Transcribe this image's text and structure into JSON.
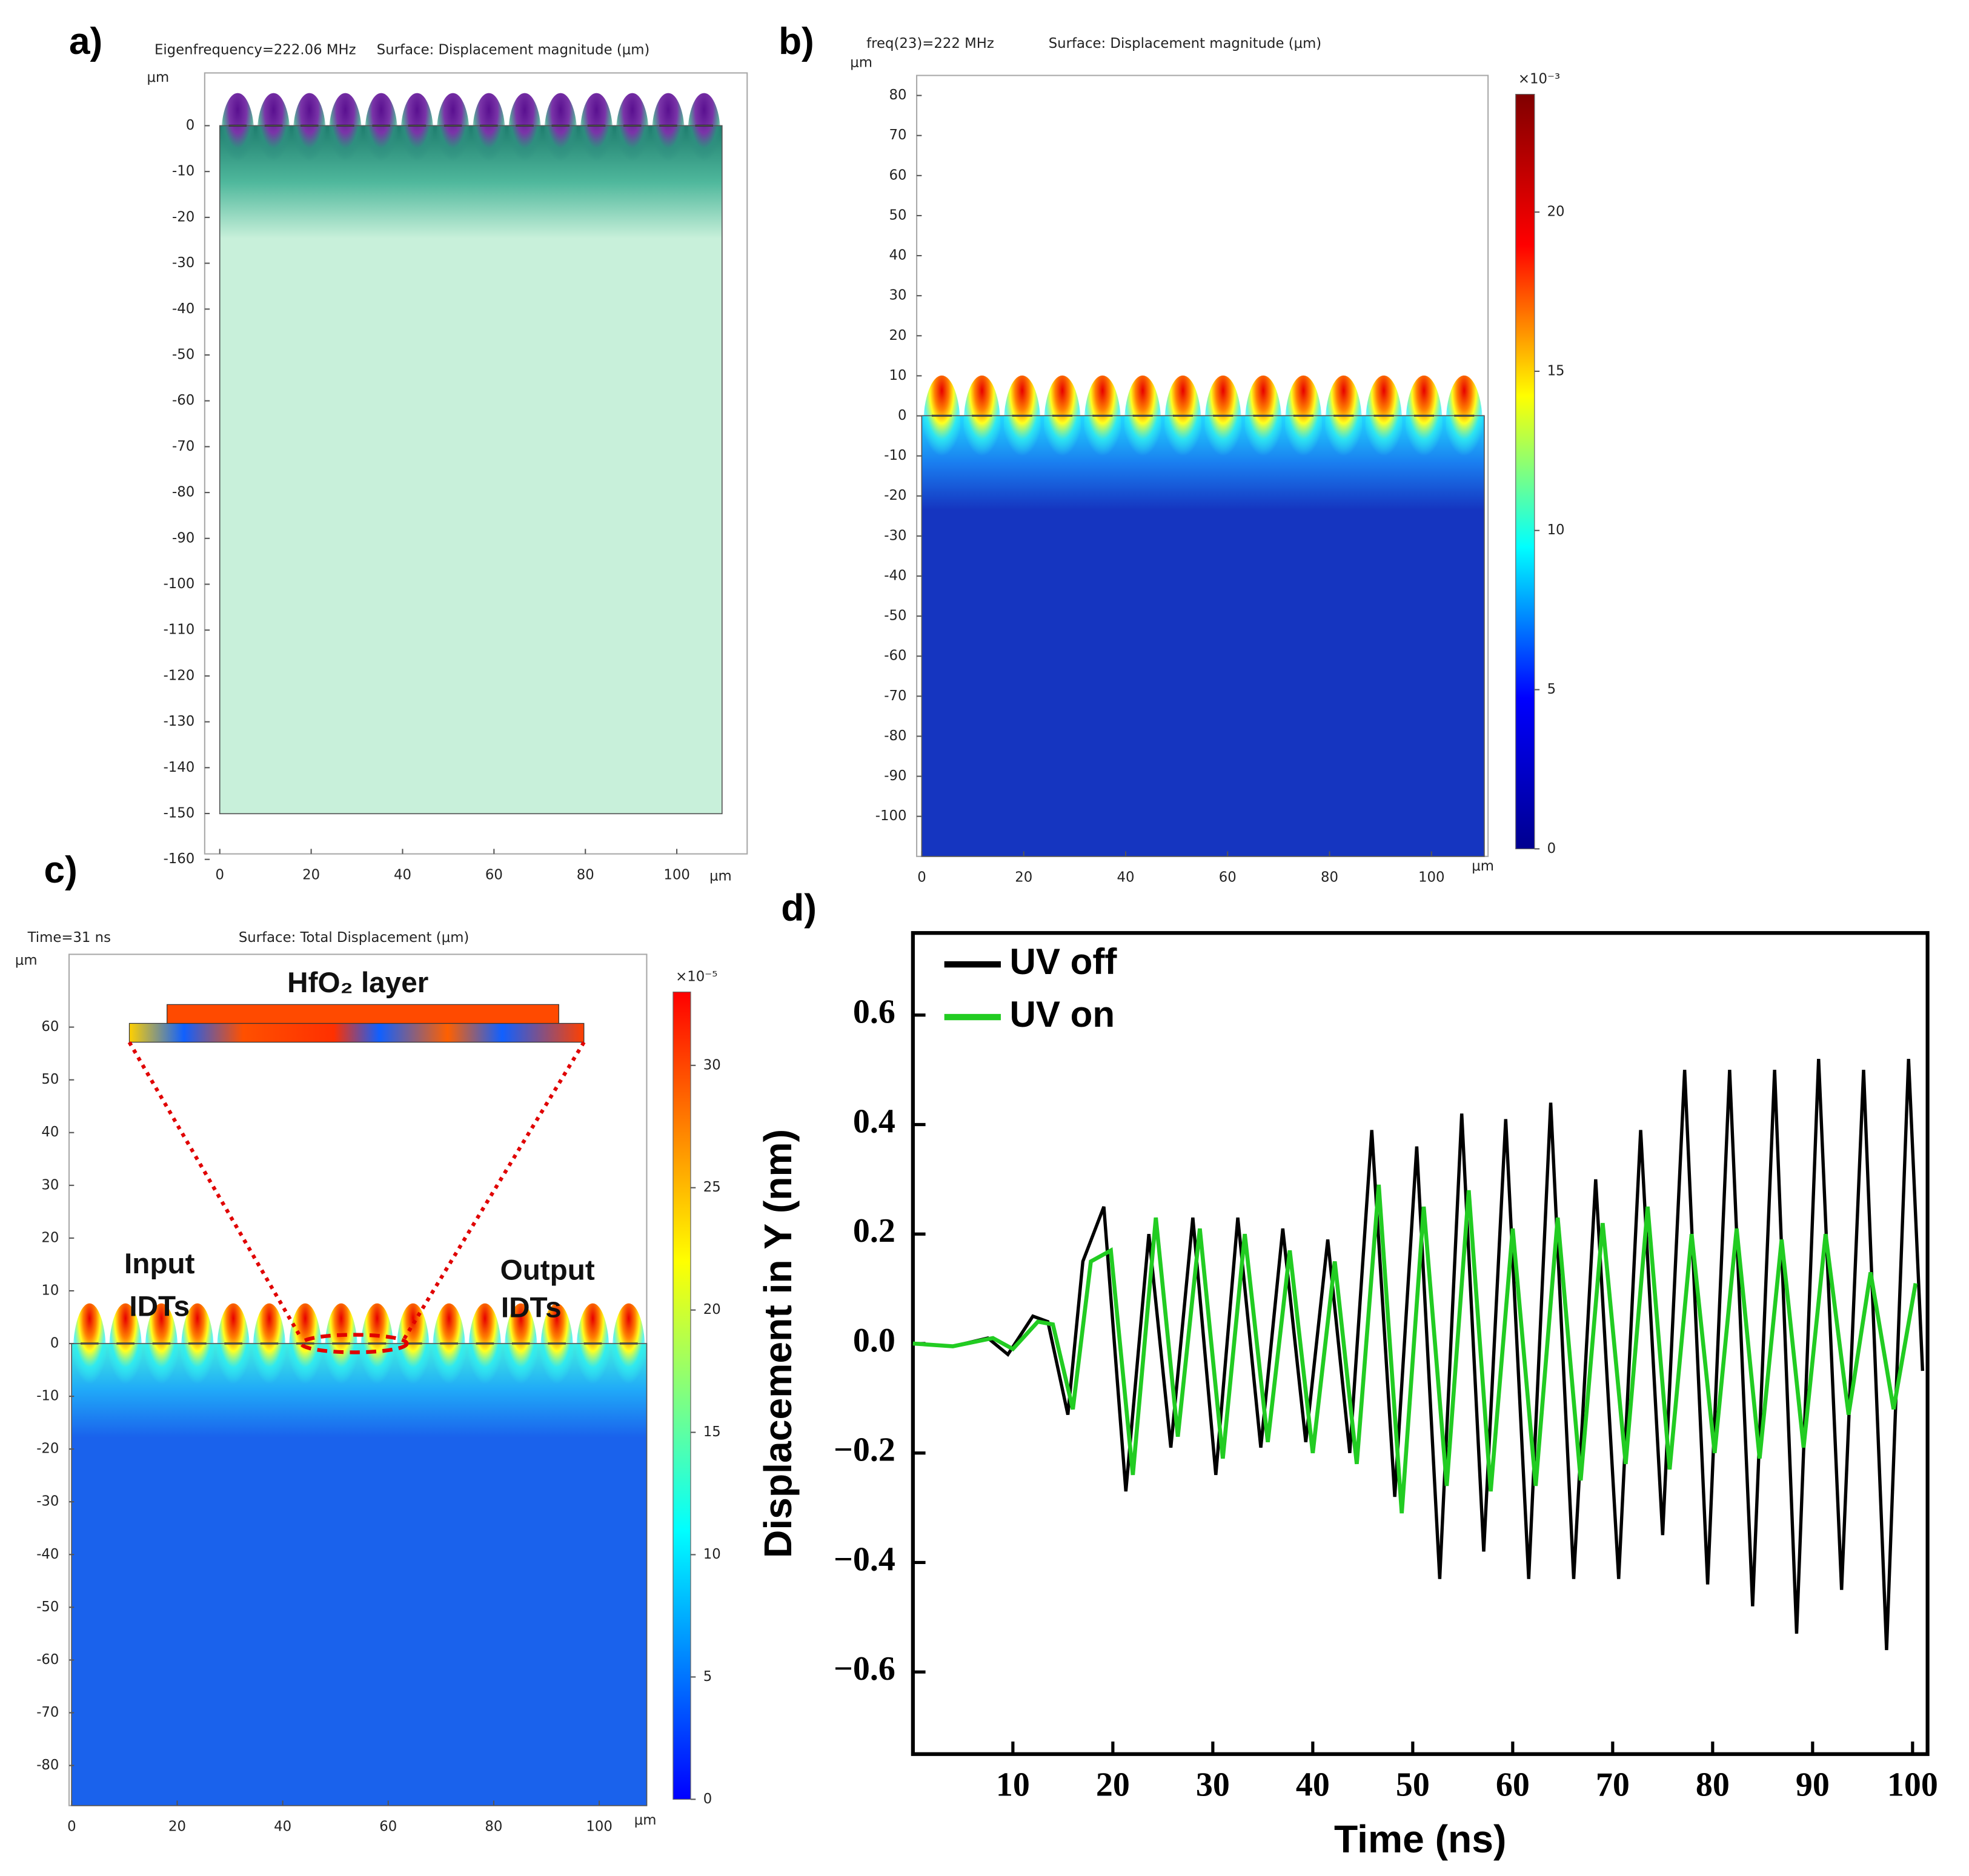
{
  "chart_data": [
    {
      "type": "field",
      "panel_label": "a)",
      "info": "Eigenfrequency=222.06 MHz",
      "title": "Surface: Displacement magnitude (μm)",
      "x_unit": "μm",
      "y_unit": "μm",
      "xlim": [
        -3.3,
        115.4
      ],
      "ylim": [
        -158.8,
        11.5
      ],
      "xticks": [
        0,
        20,
        40,
        60,
        80,
        100
      ],
      "yticks": [
        0,
        -10,
        -20,
        -30,
        -40,
        -50,
        -60,
        -70,
        -80,
        -90,
        -100,
        -110,
        -120,
        -130,
        -140,
        -150,
        -160
      ]
    },
    {
      "type": "field",
      "panel_label": "b)",
      "info": "freq(23)=222 MHz",
      "title": "Surface: Displacement magnitude (μm)",
      "x_unit": "μm",
      "y_unit": "μm",
      "xlim": [
        -1,
        111.1
      ],
      "ylim": [
        -110,
        85
      ],
      "xticks": [
        0,
        20,
        40,
        60,
        80,
        100
      ],
      "yticks": [
        80,
        70,
        60,
        50,
        40,
        30,
        20,
        10,
        0,
        -10,
        -20,
        -30,
        -40,
        -50,
        -60,
        -70,
        -80,
        -90,
        -100
      ],
      "colorbar": {
        "label": "×10⁻³",
        "lim": [
          0,
          23.7
        ],
        "ticks": [
          0,
          5,
          10,
          15,
          20
        ],
        "colormap": [
          "#00008f",
          "#0000ff",
          "#00ffff",
          "#ffff00",
          "#ff0000",
          "#800000"
        ]
      }
    },
    {
      "type": "field",
      "panel_label": "c)",
      "info": "Time=31 ns",
      "title": "Surface: Total Displacement (μm)",
      "x_unit": "μm",
      "y_unit": "μm",
      "xlim": [
        -0.5,
        109
      ],
      "ylim": [
        -87.6,
        73.8
      ],
      "xticks": [
        0,
        20,
        40,
        60,
        80,
        100
      ],
      "yticks": [
        60,
        50,
        40,
        30,
        20,
        10,
        0,
        -10,
        -20,
        -30,
        -40,
        -50,
        -60,
        -70,
        -80
      ],
      "colorbar": {
        "label": "×10⁻⁵",
        "lim": [
          0,
          33
        ],
        "ticks": [
          0,
          5,
          10,
          15,
          20,
          25,
          30
        ],
        "colormap": [
          "#0000ff",
          "#0080ff",
          "#00ffff",
          "#80ff80",
          "#ffff00",
          "#ff8000",
          "#ff0000"
        ]
      },
      "annotations": [
        "HfO₂ layer",
        "Input",
        "IDTs",
        "Output",
        "IDTs"
      ]
    },
    {
      "type": "line",
      "panel_label": "d)",
      "xlabel": "Time (ns)",
      "ylabel": "Displacement in Y (nm)",
      "xlim": [
        0,
        101.5
      ],
      "ylim": [
        -0.75,
        0.75
      ],
      "xticks": [
        10,
        20,
        30,
        40,
        50,
        60,
        70,
        80,
        90,
        100
      ],
      "yticks": [
        {
          "value": -0.6,
          "label": "−0.6"
        },
        {
          "value": -0.4,
          "label": "−0.4"
        },
        {
          "value": -0.2,
          "label": "−0.2"
        },
        {
          "value": 0,
          "label": "0.0"
        },
        0.2,
        0.4,
        0.6
      ],
      "legend": "upper left",
      "series": [
        {
          "name": "UV off",
          "color": "#000000",
          "x": [
            0,
            4,
            7.5,
            9.5,
            12,
            13.5,
            15.5,
            17,
            19.1,
            21.3,
            23.6,
            25.8,
            28.0,
            30.3,
            32.5,
            34.8,
            37.0,
            39.3,
            41.5,
            43.7,
            45.9,
            48.2,
            50.4,
            52.7,
            54.9,
            57.1,
            59.3,
            61.6,
            63.8,
            66.1,
            68.3,
            70.6,
            72.8,
            75.0,
            77.2,
            79.5,
            81.7,
            84.0,
            86.2,
            88.4,
            90.6,
            92.9,
            95.1,
            97.4,
            99.6,
            101
          ],
          "values": [
            0,
            -0.005,
            0.01,
            -0.02,
            0.05,
            0.04,
            -0.13,
            0.15,
            0.25,
            -0.27,
            0.2,
            -0.19,
            0.23,
            -0.24,
            0.23,
            -0.19,
            0.21,
            -0.18,
            0.19,
            -0.2,
            0.39,
            -0.28,
            0.36,
            -0.43,
            0.42,
            -0.38,
            0.41,
            -0.43,
            0.44,
            -0.43,
            0.3,
            -0.43,
            0.39,
            -0.35,
            0.5,
            -0.44,
            0.5,
            -0.48,
            0.5,
            -0.53,
            0.52,
            -0.45,
            0.5,
            -0.56,
            0.52,
            -0.05
          ]
        },
        {
          "name": "UV on",
          "color": "#22cc22",
          "x": [
            0,
            4,
            8,
            10,
            12.5,
            14,
            16,
            17.8,
            19.8,
            22.0,
            24.3,
            26.5,
            28.7,
            31.0,
            33.2,
            35.5,
            37.7,
            40.0,
            42.2,
            44.4,
            46.6,
            48.9,
            51.1,
            53.4,
            55.6,
            57.8,
            60.0,
            62.3,
            64.5,
            66.8,
            69.0,
            71.3,
            73.5,
            75.7,
            77.9,
            80.2,
            82.4,
            84.7,
            86.9,
            89.1,
            91.3,
            93.6,
            95.8,
            98.1,
            100.3
          ],
          "values": [
            0,
            -0.005,
            0.01,
            -0.01,
            0.04,
            0.035,
            -0.12,
            0.15,
            0.17,
            -0.24,
            0.23,
            -0.17,
            0.21,
            -0.21,
            0.2,
            -0.18,
            0.17,
            -0.2,
            0.15,
            -0.22,
            0.29,
            -0.31,
            0.25,
            -0.26,
            0.28,
            -0.27,
            0.21,
            -0.26,
            0.23,
            -0.25,
            0.22,
            -0.22,
            0.25,
            -0.23,
            0.2,
            -0.2,
            0.21,
            -0.21,
            0.19,
            -0.19,
            0.2,
            -0.13,
            0.13,
            -0.12,
            0.11
          ]
        }
      ]
    }
  ]
}
